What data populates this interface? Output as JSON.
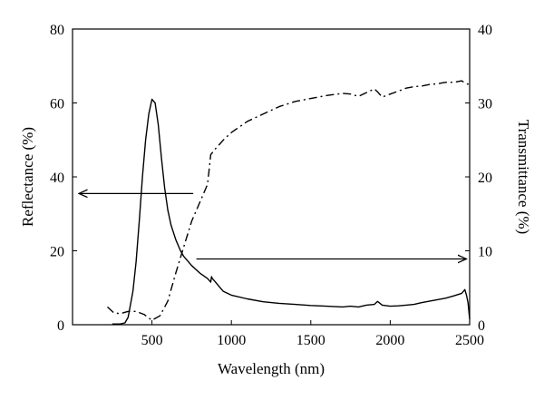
{
  "chart_data": {
    "type": "line",
    "title": "",
    "xlabel": "Wavelength (nm)",
    "ylabel_left": "Reflectance (%)",
    "ylabel_right": "Transmittance (%)",
    "xlim": [
      0,
      2500
    ],
    "ylim_left": [
      0,
      80
    ],
    "ylim_right": [
      0,
      40
    ],
    "x_ticks": [
      500,
      1000,
      1500,
      2000,
      2500
    ],
    "y_left_ticks": [
      0,
      20,
      40,
      60,
      80
    ],
    "y_right_ticks": [
      0,
      10,
      20,
      30,
      40
    ],
    "grid": false,
    "legend": "none",
    "series": [
      {
        "axis": "left",
        "style": "solid",
        "x": [
          250,
          300,
          330,
          350,
          380,
          400,
          420,
          440,
          460,
          480,
          500,
          520,
          540,
          560,
          580,
          600,
          620,
          650,
          680,
          700,
          750,
          800,
          850,
          870,
          875,
          880,
          900,
          930,
          950,
          1000,
          1100,
          1200,
          1300,
          1400,
          1500,
          1600,
          1700,
          1750,
          1800,
          1850,
          1900,
          1920,
          1950,
          2000,
          2050,
          2100,
          2150,
          2200,
          2250,
          2300,
          2350,
          2400,
          2450,
          2470,
          2480,
          2490,
          2500
        ],
        "y": [
          0.2,
          0.2,
          0.5,
          2,
          9,
          17,
          28,
          40,
          50,
          57,
          61,
          60,
          54,
          45,
          37,
          31,
          27,
          23,
          20,
          18.5,
          16,
          14,
          12.5,
          11.5,
          13,
          12.5,
          11.5,
          10,
          9,
          8,
          7,
          6.2,
          5.8,
          5.5,
          5.2,
          5,
          4.8,
          5,
          4.8,
          5.3,
          5.5,
          6.3,
          5.3,
          5,
          5.1,
          5.3,
          5.5,
          6,
          6.4,
          6.8,
          7.2,
          7.8,
          8.5,
          9.5,
          8,
          6,
          1.5
        ]
      },
      {
        "axis": "right",
        "style": "dashdot",
        "x": [
          220,
          260,
          300,
          350,
          400,
          450,
          500,
          550,
          600,
          650,
          700,
          750,
          800,
          850,
          860,
          870,
          900,
          950,
          1000,
          1100,
          1200,
          1300,
          1400,
          1500,
          1600,
          1700,
          1750,
          1800,
          1850,
          1900,
          1920,
          1950,
          2000,
          2050,
          2100,
          2150,
          2200,
          2250,
          2300,
          2350,
          2400,
          2450,
          2480,
          2500
        ],
        "y": [
          2.4,
          1.6,
          1.5,
          1.8,
          1.8,
          1.4,
          0.6,
          1.2,
          3.2,
          7,
          10.5,
          14,
          16.5,
          19,
          21,
          23,
          23.8,
          25,
          26,
          27.5,
          28.5,
          29.5,
          30.2,
          30.6,
          31,
          31.3,
          31.2,
          30.9,
          31.4,
          31.9,
          31.5,
          30.8,
          31.2,
          31.6,
          32,
          32.2,
          32.3,
          32.5,
          32.6,
          32.8,
          32.8,
          33,
          32.6,
          32.5
        ]
      }
    ],
    "annotations": [
      {
        "type": "arrow",
        "from": [
          760,
          35.5
        ],
        "to": [
          40,
          35.5
        ],
        "axis": "left",
        "points_to": "Reflectance axis"
      },
      {
        "type": "arrow",
        "from": [
          780,
          8.9
        ],
        "to": [
          2480,
          8.9
        ],
        "axis": "right",
        "points_to": "Transmittance axis"
      }
    ]
  }
}
